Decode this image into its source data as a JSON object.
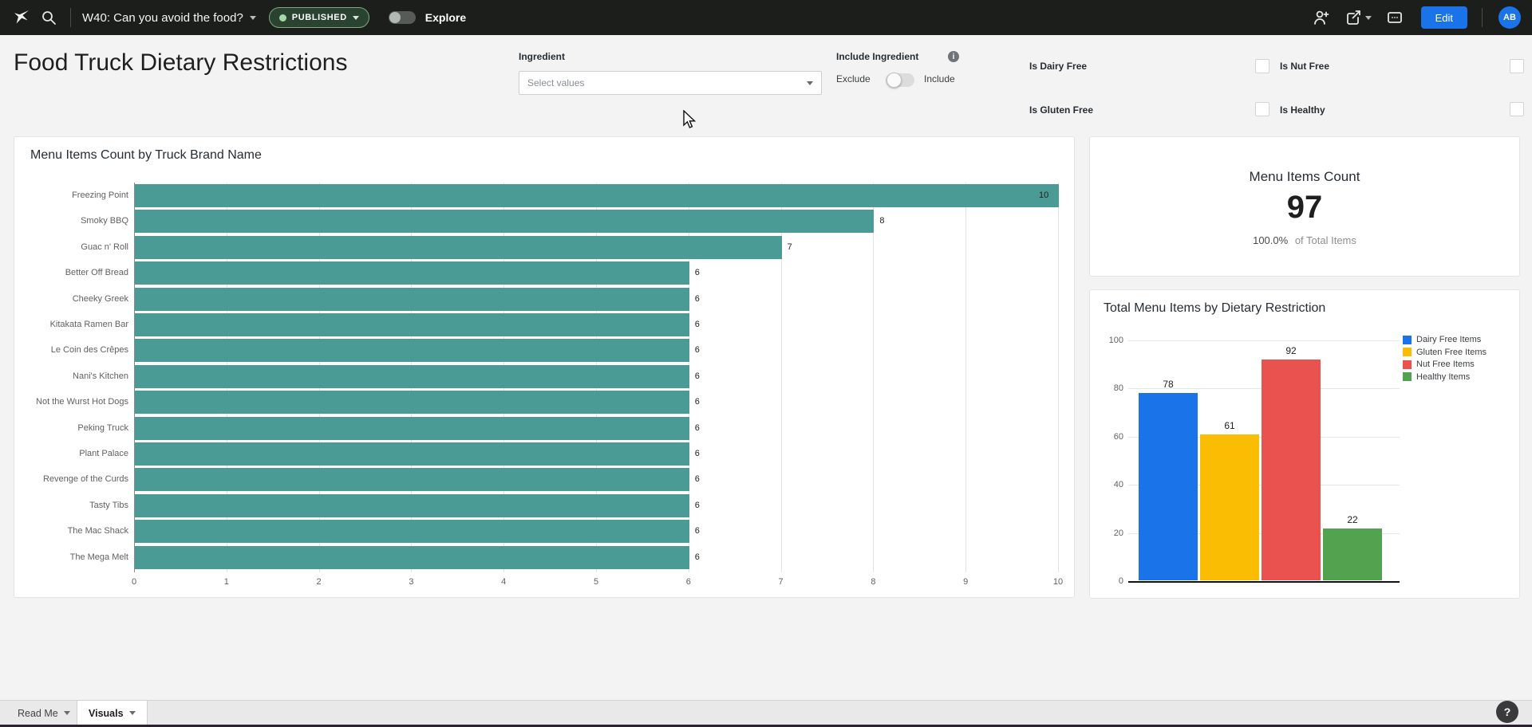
{
  "topbar": {
    "title": "W40: Can you avoid the food?",
    "status_label": "PUBLISHED",
    "explore_label": "Explore",
    "edit_label": "Edit",
    "avatar_initials": "AB",
    "accent_color": "#1a73e8"
  },
  "page": {
    "title": "Food Truck Dietary Restrictions"
  },
  "filters": {
    "ingredient": {
      "label": "Ingredient",
      "placeholder": "Select values"
    },
    "include_ingredient": {
      "label": "Include Ingredient",
      "off_label": "Exclude",
      "on_label": "Include",
      "state": "Exclude"
    },
    "checkboxes": [
      {
        "label": "Is Dairy Free",
        "checked": false
      },
      {
        "label": "Is Nut Free",
        "checked": false
      },
      {
        "label": "Is Gluten Free",
        "checked": false
      },
      {
        "label": "Is Healthy",
        "checked": false
      }
    ]
  },
  "chart_data": [
    {
      "type": "bar",
      "orientation": "horizontal",
      "title": "Menu Items Count by Truck Brand Name",
      "categories": [
        "Freezing Point",
        "Smoky BBQ",
        "Guac n' Roll",
        "Better Off Bread",
        "Cheeky Greek",
        "Kitakata Ramen Bar",
        "Le Coin des Crêpes",
        "Nani's Kitchen",
        "Not the Wurst Hot Dogs",
        "Peking Truck",
        "Plant Palace",
        "Revenge of the Curds",
        "Tasty Tibs",
        "The Mac Shack",
        "The Mega Melt"
      ],
      "values": [
        10,
        8,
        7,
        6,
        6,
        6,
        6,
        6,
        6,
        6,
        6,
        6,
        6,
        6,
        6
      ],
      "xlabel": "",
      "ylabel": "",
      "xlim": [
        0,
        10
      ],
      "x_ticks": [
        0,
        1,
        2,
        3,
        4,
        5,
        6,
        7,
        8,
        9,
        10
      ],
      "bar_color": "#4a9a96",
      "grid": true,
      "data_labels": true
    },
    {
      "type": "single_value",
      "title": "Menu Items Count",
      "value": "97",
      "percent": "100.0%",
      "percent_suffix": "of Total Items"
    },
    {
      "type": "bar",
      "orientation": "vertical",
      "title": "Total Menu Items by Dietary Restriction",
      "categories": [
        "Dairy Free Items",
        "Gluten Free Items",
        "Nut Free Items",
        "Healthy Items"
      ],
      "series": [
        {
          "name": "Dairy Free Items",
          "value": 78,
          "color": "#1a73e8"
        },
        {
          "name": "Gluten Free Items",
          "value": 61,
          "color": "#fbbc04"
        },
        {
          "name": "Nut Free Items",
          "value": 92,
          "color": "#ea5250"
        },
        {
          "name": "Healthy Items",
          "value": 22,
          "color": "#52a24f"
        }
      ],
      "ylim": [
        0,
        100
      ],
      "y_ticks": [
        0,
        20,
        40,
        60,
        80,
        100
      ],
      "legend_position": "right",
      "grid": true,
      "data_labels": true
    }
  ],
  "footer": {
    "tabs": [
      {
        "label": "Read Me",
        "active": false
      },
      {
        "label": "Visuals",
        "active": true
      }
    ],
    "help_label": "?"
  }
}
